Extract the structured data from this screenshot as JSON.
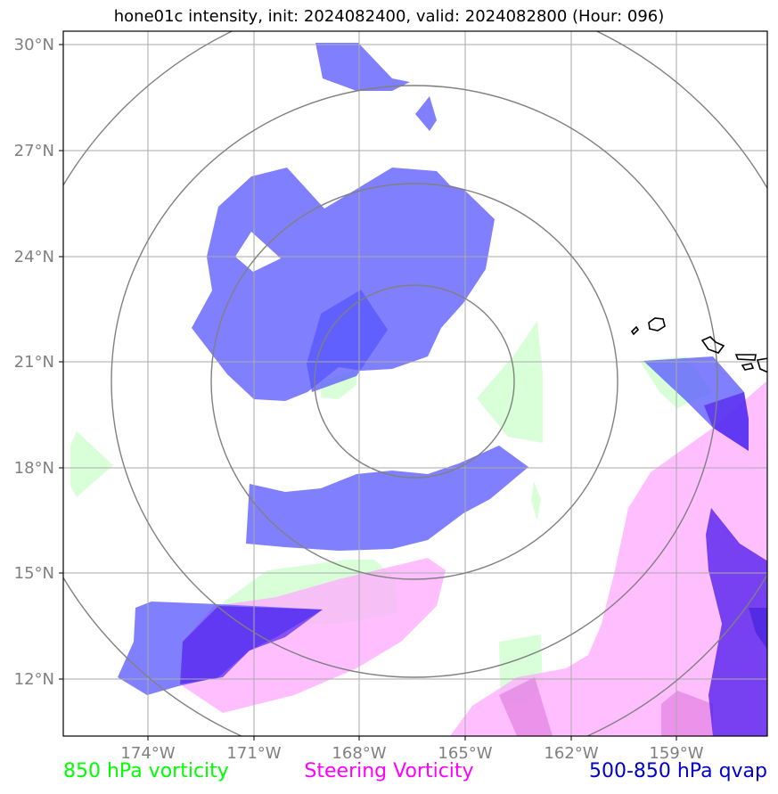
{
  "title": "hone01c intensity, init: 2024082400, valid: 2024082800 (Hour: 096)",
  "axes": {
    "lat_labels": [
      "30°N",
      "27°N",
      "24°N",
      "21°N",
      "18°N",
      "15°N",
      "12°N"
    ],
    "lon_labels": [
      "174°W",
      "171°W",
      "168°W",
      "165°W",
      "162°W",
      "159°W"
    ]
  },
  "legend": [
    {
      "label": "850 hPa vorticity",
      "color": "#00ff00"
    },
    {
      "label": "Steering Vorticity",
      "color": "#ff00ff"
    },
    {
      "label": "500-850 hPa qvap",
      "color": "#0000cc"
    }
  ],
  "colors": {
    "vorticity_fill": "#ccffcc",
    "steering_fill": "#ffaaff",
    "steering_strong": "#dd77dd",
    "qvap_fill": "#5555ff",
    "qvap_strong": "#5522ee",
    "grid": "#aaaaaa",
    "range_rings": "#808080",
    "coastline": "#000000"
  }
}
